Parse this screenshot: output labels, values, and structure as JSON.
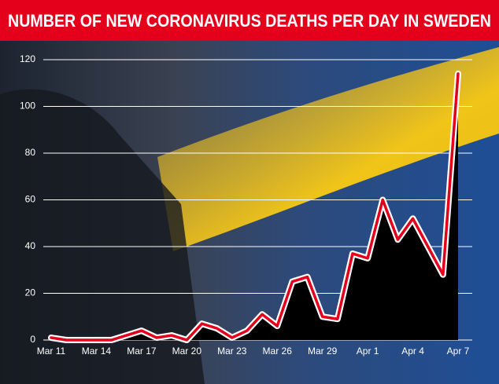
{
  "chart_data": {
    "type": "line",
    "title": "NUMBER OF NEW CORONAVIRUS DEATHS PER DAY IN SWEDEN",
    "categories": [
      "Mar 11",
      null,
      null,
      "Mar 14",
      null,
      null,
      "Mar 17",
      null,
      null,
      "Mar 20",
      null,
      null,
      "Mar 23",
      null,
      null,
      "Mar 26",
      null,
      null,
      "Mar 29",
      null,
      null,
      "Apr 1",
      null,
      null,
      "Apr 4",
      null,
      null,
      "Apr 7"
    ],
    "values": [
      1,
      0,
      0,
      0,
      0,
      2,
      4,
      1,
      2,
      0,
      7,
      5,
      1,
      4,
      11,
      6,
      25,
      27,
      10,
      9,
      37,
      35,
      60,
      43,
      52,
      40,
      28,
      114
    ],
    "color": "#e4001b",
    "ylim": [
      0,
      120
    ],
    "yticks": [
      0,
      20,
      40,
      60,
      80,
      100,
      120
    ],
    "grid": true
  }
}
